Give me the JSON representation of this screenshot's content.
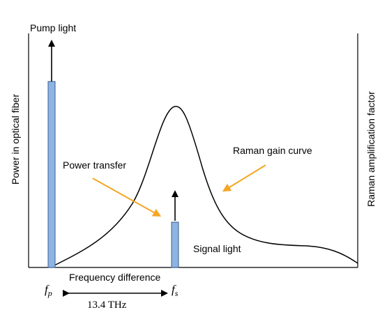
{
  "labels": {
    "pump_light": "Pump light",
    "power_transfer": "Power transfer",
    "raman_gain_curve": "Raman gain curve",
    "signal_light": "Signal light",
    "frequency_difference": "Frequency difference",
    "y_left": "Power in optical fiber",
    "y_right": "Raman amplification factor",
    "fp_base": "f",
    "fp_sub": "p",
    "fs_base": "f",
    "fs_sub": "s",
    "shift": "13.4  THz"
  },
  "colors": {
    "bar_fill": "#8eb4e3",
    "bar_stroke": "#3a5d8c",
    "arrow_orange": "#f5a623",
    "line": "#000000"
  }
}
